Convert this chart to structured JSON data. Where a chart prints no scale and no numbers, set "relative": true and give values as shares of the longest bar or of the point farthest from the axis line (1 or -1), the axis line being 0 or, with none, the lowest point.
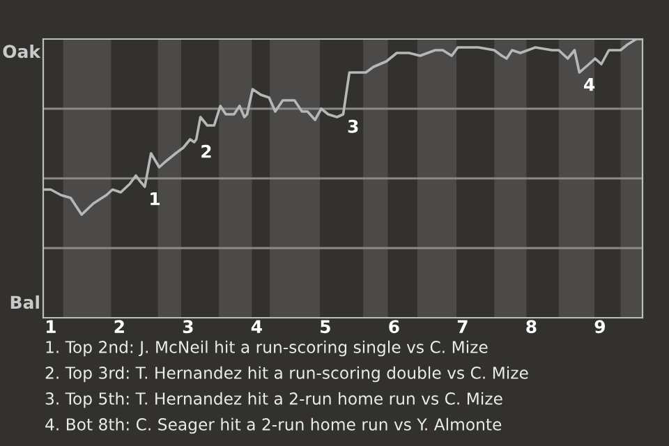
{
  "chart_data": {
    "type": "line",
    "relative": true,
    "color": "#b4b8b9",
    "grid": "y",
    "legend": false,
    "marker": "none",
    "line_style": "solid",
    "xlim": [
      0.89,
      9.62
    ],
    "xticks": [
      1,
      2,
      3,
      4,
      5,
      6,
      7,
      8,
      9
    ],
    "tick_labels": "x",
    "x": [
      0.89,
      1.0,
      1.15,
      1.29,
      1.45,
      1.62,
      1.81,
      1.9,
      2.02,
      2.15,
      2.24,
      2.3,
      2.37,
      2.46,
      2.58,
      2.67,
      2.82,
      2.93,
      3.03,
      3.09,
      3.12,
      3.18,
      3.28,
      3.38,
      3.47,
      3.55,
      3.67,
      3.75,
      3.82,
      3.86,
      3.94,
      4.06,
      4.18,
      4.27,
      4.38,
      4.55,
      4.66,
      4.74,
      4.85,
      4.94,
      5.04,
      5.17,
      5.26,
      5.35,
      5.49,
      5.59,
      5.7,
      5.89,
      6.04,
      6.22,
      6.38,
      6.6,
      6.71,
      6.84,
      6.93,
      7.08,
      7.23,
      7.46,
      7.57,
      7.64,
      7.72,
      7.84,
      7.95,
      8.06,
      8.3,
      8.4,
      8.53,
      8.63,
      8.7,
      8.84,
      8.93,
      9.02,
      9.13,
      9.3,
      9.4,
      9.53,
      9.62
    ],
    "values": [
      0.46,
      0.46,
      0.44,
      0.43,
      0.37,
      0.41,
      0.44,
      0.46,
      0.45,
      0.48,
      0.51,
      0.49,
      0.47,
      0.59,
      0.54,
      0.56,
      0.59,
      0.61,
      0.64,
      0.63,
      0.64,
      0.72,
      0.69,
      0.69,
      0.76,
      0.73,
      0.73,
      0.76,
      0.72,
      0.73,
      0.82,
      0.8,
      0.79,
      0.74,
      0.78,
      0.78,
      0.74,
      0.74,
      0.71,
      0.75,
      0.73,
      0.72,
      0.73,
      0.88,
      0.88,
      0.88,
      0.9,
      0.92,
      0.95,
      0.95,
      0.94,
      0.96,
      0.96,
      0.94,
      0.97,
      0.97,
      0.97,
      0.96,
      0.94,
      0.93,
      0.96,
      0.95,
      0.96,
      0.97,
      0.96,
      0.96,
      0.93,
      0.96,
      0.88,
      0.91,
      0.93,
      0.91,
      0.96,
      0.96,
      0.98,
      1.0,
      1.0
    ],
    "bands": [
      {
        "axis": "x",
        "from": 1.18,
        "to": 1.88,
        "color": "#4c4a48"
      },
      {
        "axis": "x",
        "from": 2.56,
        "to": 2.9,
        "color": "#4c4a48"
      },
      {
        "axis": "x",
        "from": 3.45,
        "to": 3.93,
        "color": "#4c4a48"
      },
      {
        "axis": "x",
        "from": 4.19,
        "to": 4.92,
        "color": "#4c4a48"
      },
      {
        "axis": "x",
        "from": 5.55,
        "to": 5.91,
        "color": "#4c4a48"
      },
      {
        "axis": "x",
        "from": 6.34,
        "to": 6.91,
        "color": "#4c4a48"
      },
      {
        "axis": "x",
        "from": 7.46,
        "to": 7.93,
        "color": "#4c4a48"
      },
      {
        "axis": "x",
        "from": 8.4,
        "to": 8.92,
        "color": "#4c4a48"
      },
      {
        "axis": "x",
        "from": 9.3,
        "to": 9.62,
        "color": "#4c4a48"
      }
    ],
    "annotations": [
      "Oak",
      "Bal",
      "1. Top 2nd: J. McNeil hit a run-scoring single vs C. Mize",
      "2. Top 3rd: T. Hernandez hit a run-scoring double vs C. Mize",
      "3. Top 5th: T. Hernandez hit a 2-run home run vs C. Mize",
      "4. Bot 8th: C. Seager hit a 2-run home run vs Y. Almonte",
      {
        "text": "1",
        "x": 2.37,
        "y": 0.47
      },
      {
        "text": "2",
        "x": 3.12,
        "y": 0.64
      },
      {
        "text": "3",
        "x": 5.26,
        "y": 0.73
      },
      {
        "text": "4",
        "x": 8.7,
        "y": 0.88
      }
    ]
  }
}
